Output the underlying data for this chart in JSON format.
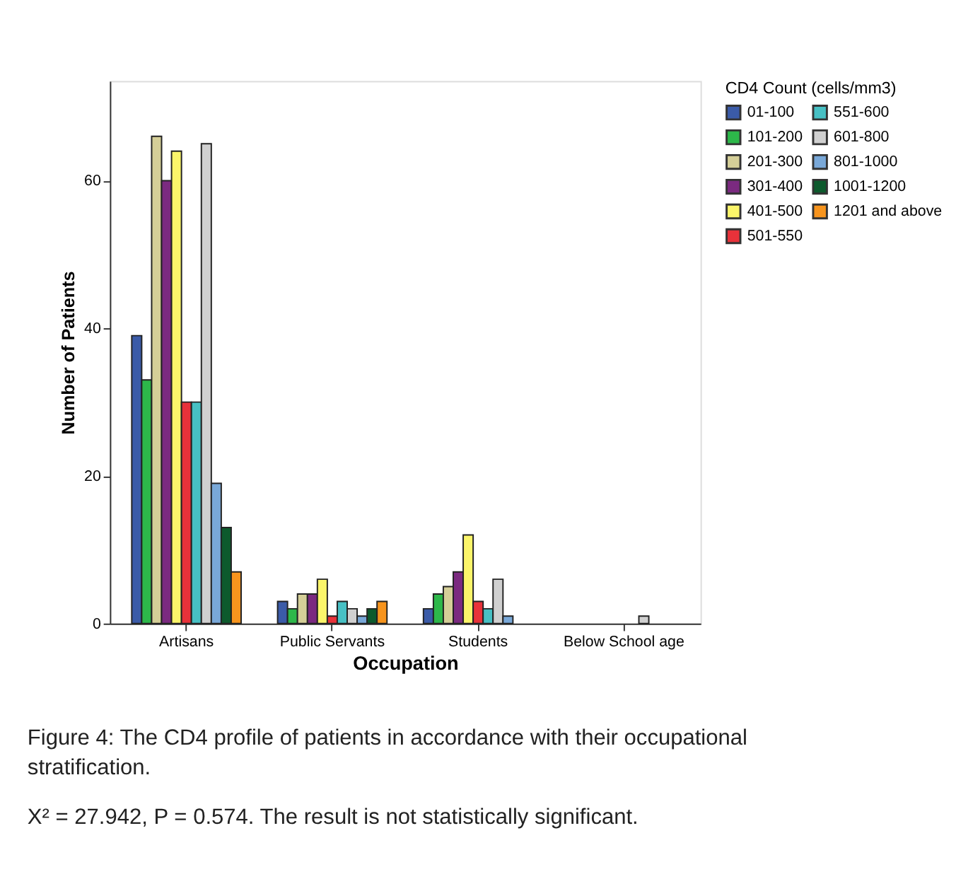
{
  "chart_data": {
    "type": "bar",
    "xlabel": "Occupation",
    "ylabel": "Number of Patients",
    "legend_title": "CD4 Count (cells/mm3)",
    "categories": [
      "Artisans",
      "Public Servants",
      "Students",
      "Below School age"
    ],
    "series": [
      {
        "name": "01-100",
        "color": "#3b5ba8",
        "values": [
          39,
          3,
          2,
          null
        ]
      },
      {
        "name": "101-200",
        "color": "#2db84a",
        "values": [
          33,
          2,
          4,
          null
        ]
      },
      {
        "name": "201-300",
        "color": "#d5cf98",
        "values": [
          66,
          4,
          5,
          null
        ]
      },
      {
        "name": "301-400",
        "color": "#7b2a80",
        "values": [
          60,
          4,
          7,
          null
        ]
      },
      {
        "name": "401-500",
        "color": "#fbf56a",
        "values": [
          64,
          6,
          12,
          null
        ]
      },
      {
        "name": "501-550",
        "color": "#e8323a",
        "values": [
          30,
          1,
          3,
          null
        ]
      },
      {
        "name": "551-600",
        "color": "#47c0c4",
        "values": [
          30,
          3,
          2,
          null
        ]
      },
      {
        "name": "601-800",
        "color": "#d0d0d0",
        "values": [
          65,
          2,
          6,
          1
        ]
      },
      {
        "name": "801-1000",
        "color": "#79a8d8",
        "values": [
          19,
          1,
          1,
          null
        ]
      },
      {
        "name": "1001-1200",
        "color": "#0d5a2d",
        "values": [
          13,
          2,
          null,
          null
        ]
      },
      {
        "name": "1201 and above",
        "color": "#f7941d",
        "values": [
          7,
          3,
          null,
          null
        ]
      }
    ],
    "ylim": [
      0,
      73.5
    ],
    "yticks": [
      0,
      20,
      40,
      60
    ],
    "grid": false,
    "legend": "right",
    "annotations": [
      "Figure 4: The CD4 profile of patients in accordance with their occupational stratification.",
      "X² = 27.942, P = 0.574. The result is not statistically significant."
    ]
  }
}
